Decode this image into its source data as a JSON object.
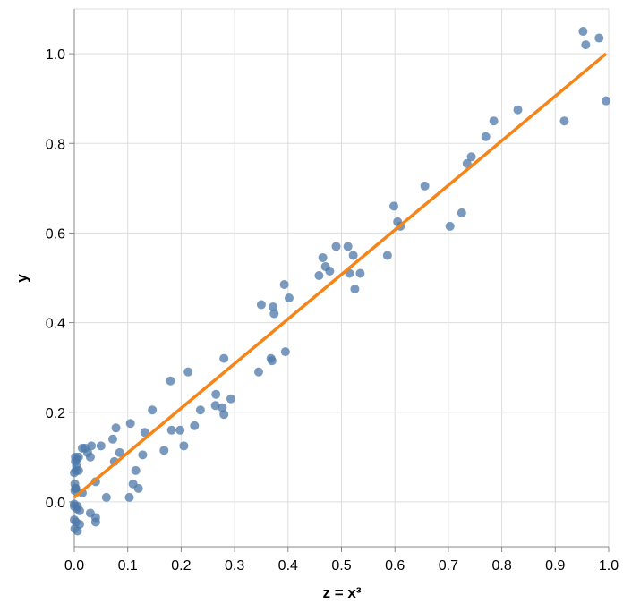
{
  "chart_data": {
    "type": "scatter",
    "title": "",
    "xlabel": "z = x³",
    "ylabel": "y",
    "xlim": [
      0.0,
      1.0
    ],
    "ylim": [
      -0.1,
      1.1
    ],
    "grid": true,
    "x_ticks": [
      "0.0",
      "0.1",
      "0.2",
      "0.3",
      "0.4",
      "0.5",
      "0.6",
      "0.7",
      "0.8",
      "0.9",
      "1.0"
    ],
    "y_ticks": [
      "0.0",
      "0.2",
      "0.4",
      "0.6",
      "0.8",
      "1.0"
    ],
    "colors": {
      "points": "#4c78a8",
      "fit_line": "#f58518"
    },
    "series": [
      {
        "kind": "points",
        "x": [
          0.0,
          0.001,
          0.002,
          0.003,
          0.002,
          0.004,
          0.006,
          0.008,
          0.01,
          0.015,
          0.02,
          0.025,
          0.03,
          0.032,
          0.04,
          0.05,
          0.0,
          0.001,
          0.003,
          0.006,
          0.01,
          0.015,
          0.0,
          0.002,
          0.005,
          0.008,
          0.0,
          0.001,
          0.003,
          0.005,
          0.03,
          0.04,
          0.04,
          0.06,
          0.075,
          0.078,
          0.085,
          0.072,
          0.105,
          0.11,
          0.115,
          0.12,
          0.103,
          0.128,
          0.132,
          0.146,
          0.168,
          0.18,
          0.182,
          0.198,
          0.205,
          0.213,
          0.225,
          0.236,
          0.264,
          0.265,
          0.277,
          0.28,
          0.293,
          0.28,
          0.345,
          0.35,
          0.368,
          0.37,
          0.372,
          0.374,
          0.393,
          0.395,
          0.402,
          0.458,
          0.465,
          0.47,
          0.478,
          0.49,
          0.512,
          0.515,
          0.522,
          0.525,
          0.535,
          0.586,
          0.598,
          0.605,
          0.61,
          0.656,
          0.703,
          0.725,
          0.735,
          0.743,
          0.77,
          0.785,
          0.83,
          0.917,
          0.952,
          0.957,
          0.982,
          0.995
        ],
        "y": [
          -0.01,
          0.04,
          0.1,
          0.07,
          0.03,
          0.08,
          -0.01,
          0.07,
          -0.02,
          0.02,
          0.12,
          0.11,
          0.1,
          0.125,
          0.045,
          0.125,
          -0.04,
          -0.06,
          -0.045,
          -0.065,
          -0.05,
          0.12,
          0.065,
          0.09,
          0.095,
          0.1,
          -0.005,
          0.025,
          0.03,
          -0.015,
          -0.025,
          -0.035,
          -0.045,
          0.01,
          0.09,
          0.165,
          0.11,
          0.14,
          0.175,
          0.04,
          0.07,
          0.03,
          0.01,
          0.105,
          0.155,
          0.205,
          0.115,
          0.27,
          0.16,
          0.16,
          0.125,
          0.29,
          0.17,
          0.205,
          0.215,
          0.24,
          0.21,
          0.32,
          0.23,
          0.195,
          0.29,
          0.44,
          0.32,
          0.315,
          0.435,
          0.42,
          0.485,
          0.335,
          0.455,
          0.505,
          0.545,
          0.525,
          0.515,
          0.57,
          0.57,
          0.51,
          0.55,
          0.475,
          0.51,
          0.55,
          0.66,
          0.625,
          0.615,
          0.705,
          0.615,
          0.645,
          0.755,
          0.77,
          0.815,
          0.85,
          0.875,
          0.85,
          1.05,
          1.02,
          1.035,
          0.895
        ]
      },
      {
        "kind": "fit_line",
        "x": [
          0.0,
          0.995
        ],
        "y": [
          0.01,
          1.0
        ]
      }
    ]
  }
}
